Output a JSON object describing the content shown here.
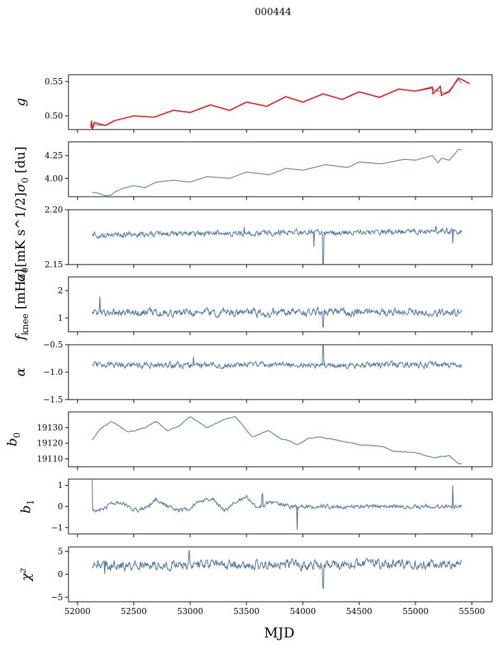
{
  "figure": {
    "title": "000444",
    "xlabel": "MJD",
    "x_ticks": [
      52000,
      52500,
      53000,
      53500,
      54000,
      54500,
      55000,
      55500
    ],
    "x_tick_labels": [
      "52000",
      "52500",
      "53000",
      "53500",
      "54000",
      "54500",
      "55000",
      "55500"
    ],
    "xlim": [
      51920,
      55680
    ],
    "x_start": 52130,
    "x_end": 55410,
    "line_color": "#4c72a6",
    "overlay_color": "#ff0000"
  },
  "chart_data": [
    {
      "type": "line",
      "ylabel": "g",
      "ylim": [
        0.48,
        0.56
      ],
      "y_ticks": [
        0.5,
        0.55
      ],
      "y_tick_labels": [
        "0.50",
        "0.55"
      ],
      "x": [
        52130,
        52250,
        52330,
        52500,
        52680,
        52850,
        53000,
        53180,
        53350,
        53500,
        53680,
        53850,
        54000,
        54180,
        54350,
        54500,
        54680,
        54850,
        55000,
        55140,
        55200,
        55260,
        55300,
        55340,
        55380,
        55410
      ],
      "values": [
        0.487,
        0.486,
        0.493,
        0.5,
        0.498,
        0.508,
        0.505,
        0.516,
        0.508,
        0.52,
        0.514,
        0.528,
        0.52,
        0.532,
        0.524,
        0.535,
        0.527,
        0.539,
        0.536,
        0.54,
        0.536,
        0.533,
        0.537,
        0.545,
        0.553,
        0.548
      ],
      "overlay_x": [
        52120,
        52125,
        52130,
        52150,
        52250,
        52330,
        52500,
        52680,
        52850,
        53000,
        53180,
        53350,
        53500,
        53680,
        53850,
        54000,
        54180,
        54350,
        54500,
        54680,
        54850,
        55000,
        55100,
        55150,
        55155,
        55220,
        55230,
        55300,
        55360,
        55380,
        55420,
        55480
      ],
      "overlay_values": [
        0.483,
        0.493,
        0.48,
        0.49,
        0.486,
        0.493,
        0.5,
        0.498,
        0.508,
        0.505,
        0.516,
        0.508,
        0.52,
        0.514,
        0.528,
        0.52,
        0.532,
        0.524,
        0.535,
        0.527,
        0.539,
        0.536,
        0.54,
        0.542,
        0.532,
        0.543,
        0.53,
        0.535,
        0.55,
        0.555,
        0.552,
        0.547
      ]
    },
    {
      "type": "line",
      "ylabel": "σ0 [du]",
      "ylim": [
        3.8,
        4.4
      ],
      "y_ticks": [
        4.0,
        4.25
      ],
      "y_tick_labels": [
        "4.00",
        "4.25"
      ],
      "x": [
        52130,
        52180,
        52250,
        52300,
        52330,
        52400,
        52500,
        52600,
        52700,
        52850,
        53000,
        53150,
        53350,
        53500,
        53700,
        53850,
        54000,
        54200,
        54400,
        54500,
        54700,
        54900,
        55000,
        55150,
        55200,
        55230,
        55300,
        55350,
        55380,
        55410
      ],
      "values": [
        3.85,
        3.84,
        3.81,
        3.82,
        3.85,
        3.89,
        3.92,
        3.9,
        3.96,
        3.98,
        3.96,
        4.02,
        4.0,
        4.07,
        4.04,
        4.11,
        4.09,
        4.15,
        4.12,
        4.18,
        4.16,
        4.21,
        4.2,
        4.25,
        4.17,
        4.22,
        4.2,
        4.27,
        4.32,
        4.31
      ]
    },
    {
      "type": "line",
      "ylabel": "σ0[mK s^1/2]",
      "ylim": [
        2.15,
        2.2
      ],
      "y_ticks": [
        2.15,
        2.2
      ],
      "y_tick_labels": [
        "2.15",
        "2.20"
      ],
      "base": [
        2.1772,
        2.1802
      ],
      "noise": 0.0028,
      "spikes": [
        [
          52150,
          0.0012
        ],
        [
          53480,
          0.005
        ],
        [
          54100,
          -0.012
        ],
        [
          54180,
          -0.0284
        ],
        [
          55180,
          0.0036
        ],
        [
          55330,
          -0.012
        ]
      ],
      "seed": 3
    },
    {
      "type": "line",
      "ylabel": "fknee [mHz]",
      "ylim": [
        0.5,
        2.5
      ],
      "y_ticks": [
        1,
        2
      ],
      "y_tick_labels": [
        "1",
        "2"
      ],
      "base": [
        1.2,
        1.2
      ],
      "noise": 0.16,
      "spikes": [
        [
          52200,
          0.5
        ],
        [
          54180,
          -0.6
        ]
      ],
      "seed": 7
    },
    {
      "type": "line",
      "ylabel": "α",
      "ylim": [
        -1.5,
        -0.5
      ],
      "y_ticks": [
        -1.5,
        -1.0,
        -0.5
      ],
      "y_tick_labels": [
        "−1.5",
        "−1.0",
        "−0.5"
      ],
      "base": [
        -0.87,
        -0.87
      ],
      "noise": 0.06,
      "spikes": [
        [
          54180,
          0.37
        ],
        [
          53030,
          0.16
        ]
      ],
      "seed": 11
    },
    {
      "type": "line",
      "ylabel": "b0",
      "ylim": [
        19105,
        19140
      ],
      "y_ticks": [
        19110,
        19120,
        19130
      ],
      "y_tick_labels": [
        "19110",
        "19120",
        "19130"
      ],
      "x": [
        52130,
        52200,
        52300,
        52350,
        52450,
        52600,
        52700,
        52800,
        52900,
        53000,
        53150,
        53300,
        53400,
        53450,
        53550,
        53650,
        53700,
        53800,
        53900,
        53950,
        54050,
        54150,
        54300,
        54500,
        54700,
        54800,
        55000,
        55150,
        55200,
        55300,
        55350,
        55380,
        55410
      ],
      "values": [
        19122,
        19129,
        19134,
        19132,
        19127,
        19130,
        19134,
        19128,
        19131,
        19137,
        19130,
        19135,
        19137,
        19133,
        19124,
        19127,
        19128,
        19123,
        19121,
        19119,
        19123,
        19124,
        19122,
        19119,
        19118,
        19115,
        19114,
        19111,
        19111,
        19112,
        19109,
        19107,
        19107
      ],
      "noise": 0.3,
      "seed": 5
    },
    {
      "type": "line",
      "ylabel": "b1",
      "ylim": [
        -1.3,
        1.3
      ],
      "y_ticks": [
        -1,
        0,
        1
      ],
      "y_tick_labels": [
        "−1",
        "0",
        "1"
      ],
      "x": [
        52130,
        52200,
        52300,
        52400,
        52500,
        52600,
        52700,
        52800,
        52900,
        53000,
        53100,
        53200,
        53300,
        53400,
        53500,
        53600,
        53700,
        53800,
        53900,
        54000,
        54200,
        54400,
        54600,
        54800,
        55000,
        55200,
        55400
      ],
      "values": [
        -0.2,
        -0.2,
        0.1,
        0.2,
        -0.2,
        -0.1,
        0.35,
        0.0,
        -0.2,
        -0.1,
        0.3,
        0.35,
        -0.2,
        0.2,
        0.5,
        -0.1,
        0.2,
        0.1,
        0.0,
        0.0,
        0.0,
        0.0,
        0.0,
        0.0,
        0.0,
        0.0,
        0.0
      ],
      "noise": 0.11,
      "spikes": [
        [
          52130,
          1.5
        ],
        [
          53950,
          -1.1
        ],
        [
          53640,
          0.6
        ],
        [
          55330,
          1.0
        ]
      ],
      "seed": 9
    },
    {
      "type": "line",
      "ylabel": "χ²",
      "ylim": [
        -6,
        6
      ],
      "y_ticks": [
        -5,
        0,
        5
      ],
      "y_tick_labels": [
        "−5",
        "0",
        "5"
      ],
      "base": [
        2.0,
        2.2
      ],
      "noise": 1.15,
      "spikes": [
        [
          54180,
          -5.0
        ],
        [
          52240,
          -3.0
        ],
        [
          52990,
          3.0
        ]
      ],
      "seed": 13
    }
  ]
}
